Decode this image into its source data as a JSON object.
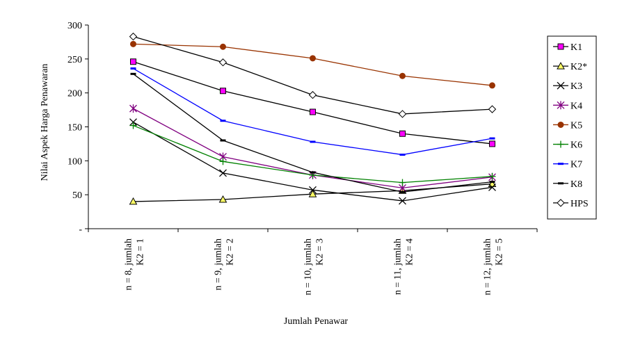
{
  "chart_data": {
    "type": "line",
    "xlabel": "Jumlah Penawar",
    "ylabel": "Nilai Aspek Harga Penawaran",
    "ylim": [
      0,
      300
    ],
    "yticks": [
      "-",
      "50",
      "100",
      "150",
      "200",
      "250",
      "300"
    ],
    "grid": false,
    "legend_position": "right",
    "categories": [
      [
        "n = 8, jumlah",
        "K2 = 1"
      ],
      [
        "n = 9, jumlah",
        "K2 = 2"
      ],
      [
        "n = 10, jumlah",
        "K2 = 3"
      ],
      [
        "n = 11, jumlah",
        "K2 = 4"
      ],
      [
        "n = 12, jumlah",
        "K2 = 5"
      ]
    ],
    "series": [
      {
        "name": "K1",
        "color": "#000000",
        "marker": "square",
        "marker_fill": "#ff00ff",
        "values": [
          246,
          203,
          172,
          140,
          125
        ]
      },
      {
        "name": "K2*",
        "color": "#000000",
        "marker": "triangle",
        "marker_fill": "#ffff66",
        "values": [
          40,
          43,
          51,
          56,
          66
        ]
      },
      {
        "name": "K3",
        "color": "#000000",
        "marker": "x",
        "marker_fill": "#000000",
        "values": [
          157,
          82,
          57,
          41,
          61
        ]
      },
      {
        "name": "K4",
        "color": "#800080",
        "marker": "asterisk",
        "marker_fill": "#800080",
        "values": [
          177,
          106,
          79,
          60,
          76
        ]
      },
      {
        "name": "K5",
        "color": "#993300",
        "marker": "circle",
        "marker_fill": "#993300",
        "values": [
          272,
          268,
          251,
          225,
          211
        ]
      },
      {
        "name": "K6",
        "color": "#008000",
        "marker": "plus",
        "marker_fill": "#008000",
        "values": [
          152,
          99,
          79,
          68,
          77
        ]
      },
      {
        "name": "K7",
        "color": "#0000ff",
        "marker": "dash",
        "marker_fill": "#0000ff",
        "values": [
          236,
          159,
          128,
          109,
          133
        ]
      },
      {
        "name": "K8",
        "color": "#000000",
        "marker": "dash",
        "marker_fill": "#000000",
        "values": [
          228,
          130,
          83,
          54,
          69
        ]
      },
      {
        "name": "HPS",
        "color": "#000000",
        "marker": "diamond",
        "marker_fill": "#ffffff",
        "values": [
          283,
          245,
          197,
          169,
          176
        ]
      }
    ]
  }
}
